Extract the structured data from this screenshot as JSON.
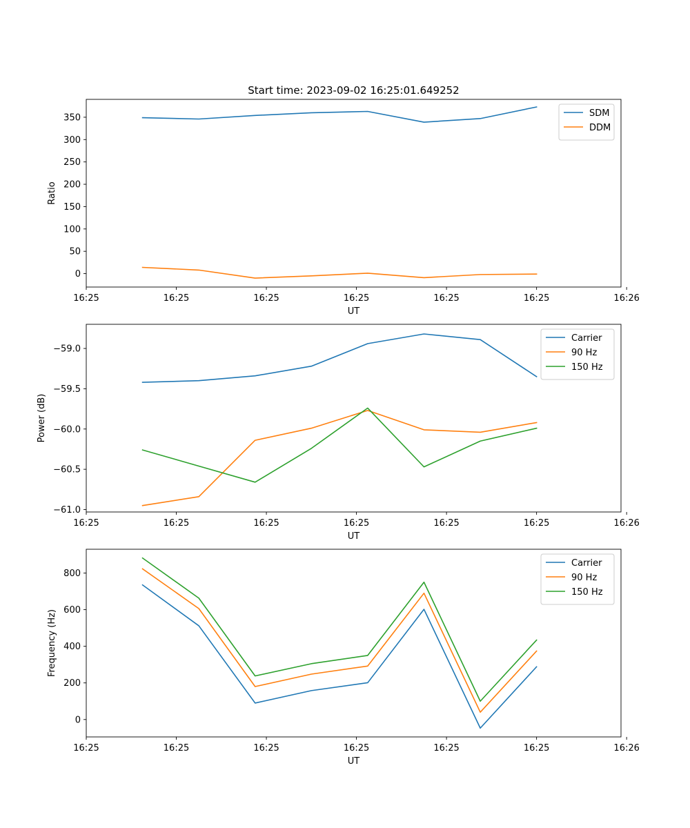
{
  "figure_title": "Start time: 2023-09-02 16:25:01.649252",
  "colors": {
    "blue": "#1f77b4",
    "orange": "#ff7f0e",
    "green": "#2ca02c"
  },
  "chart_data": [
    {
      "type": "line",
      "xlabel": "UT",
      "ylabel": "Ratio",
      "x": [
        0.5,
        1,
        1.5,
        2,
        2.5,
        3,
        3.5,
        4
      ],
      "xlim": [
        0,
        4.75
      ],
      "x_ticks": [
        0,
        0.8,
        1.6,
        2.4,
        3.2,
        4.0,
        4.8
      ],
      "x_tick_labels": [
        "16:25",
        "16:25",
        "16:25",
        "16:25",
        "16:25",
        "16:25",
        "16:26"
      ],
      "ylim": [
        -30,
        390
      ],
      "y_ticks": [
        0,
        50,
        100,
        150,
        200,
        250,
        300,
        350
      ],
      "y_tick_labels": [
        "0",
        "50",
        "100",
        "150",
        "200",
        "250",
        "300",
        "350"
      ],
      "legend": "top-right",
      "series": [
        {
          "name": "SDM",
          "color": "#1f77b4",
          "values": [
            349,
            346,
            354,
            360,
            363,
            339,
            347,
            373
          ]
        },
        {
          "name": "DDM",
          "color": "#ff7f0e",
          "values": [
            14,
            8,
            -10,
            -5,
            1,
            -9,
            -2,
            -1
          ]
        }
      ]
    },
    {
      "type": "line",
      "xlabel": "UT",
      "ylabel": "Power (dB)",
      "x": [
        0.5,
        1,
        1.5,
        2,
        2.5,
        3,
        3.5,
        4
      ],
      "xlim": [
        0,
        4.75
      ],
      "x_ticks": [
        0,
        0.8,
        1.6,
        2.4,
        3.2,
        4.0,
        4.8
      ],
      "x_tick_labels": [
        "16:25",
        "16:25",
        "16:25",
        "16:25",
        "16:25",
        "16:25",
        "16:26"
      ],
      "ylim": [
        -61.03,
        -58.7
      ],
      "y_ticks": [
        -61.0,
        -60.5,
        -60.0,
        -59.5,
        -59.0
      ],
      "y_tick_labels": [
        "−61.0",
        "−60.5",
        "−60.0",
        "−59.5",
        "−59.0"
      ],
      "legend": "top-right",
      "series": [
        {
          "name": "Carrier",
          "color": "#1f77b4",
          "values": [
            -59.42,
            -59.4,
            -59.34,
            -59.22,
            -58.94,
            -58.82,
            -58.89,
            -59.35
          ]
        },
        {
          "name": "90 Hz",
          "color": "#ff7f0e",
          "values": [
            -60.95,
            -60.84,
            -60.14,
            -59.99,
            -59.77,
            -60.01,
            -60.04,
            -59.92
          ]
        },
        {
          "name": "150 Hz",
          "color": "#2ca02c",
          "values": [
            -60.26,
            -60.46,
            -60.66,
            -60.24,
            -59.74,
            -60.47,
            -60.15,
            -59.99
          ]
        }
      ]
    },
    {
      "type": "line",
      "xlabel": "UT",
      "ylabel": "Frequency (Hz)",
      "x": [
        0.5,
        1,
        1.5,
        2,
        2.5,
        3,
        3.5,
        4
      ],
      "xlim": [
        0,
        4.75
      ],
      "x_ticks": [
        0,
        0.8,
        1.6,
        2.4,
        3.2,
        4.0,
        4.8
      ],
      "x_tick_labels": [
        "16:25",
        "16:25",
        "16:25",
        "16:25",
        "16:25",
        "16:25",
        "16:26"
      ],
      "ylim": [
        -95,
        930
      ],
      "y_ticks": [
        0,
        200,
        400,
        600,
        800
      ],
      "y_tick_labels": [
        "0",
        "200",
        "400",
        "600",
        "800"
      ],
      "legend": "top-right",
      "series": [
        {
          "name": "Carrier",
          "color": "#1f77b4",
          "values": [
            735,
            512,
            90,
            158,
            201,
            602,
            -47,
            288
          ]
        },
        {
          "name": "90 Hz",
          "color": "#ff7f0e",
          "values": [
            823,
            606,
            180,
            248,
            292,
            690,
            40,
            374
          ]
        },
        {
          "name": "150 Hz",
          "color": "#2ca02c",
          "values": [
            882,
            663,
            238,
            305,
            350,
            750,
            100,
            434
          ]
        }
      ]
    }
  ]
}
